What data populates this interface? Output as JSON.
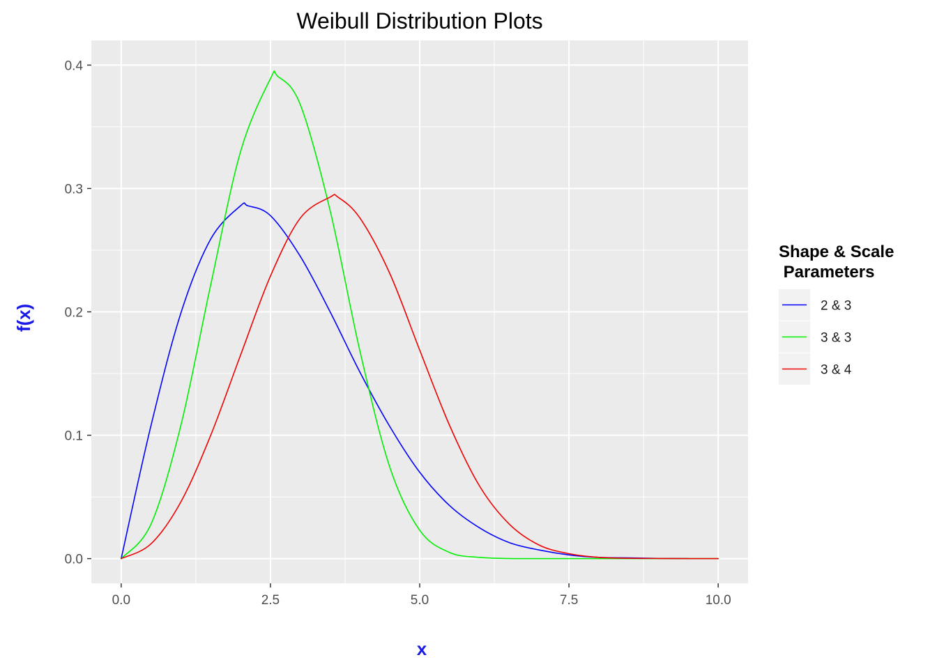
{
  "chart_data": {
    "type": "line",
    "title": "Weibull Distribution Plots",
    "xlabel": "x",
    "ylabel": "f(x)",
    "xlim": [
      -0.5,
      10.5
    ],
    "ylim": [
      -0.02,
      0.42
    ],
    "x_ticks": [
      0.0,
      2.5,
      5.0,
      7.5,
      10.0
    ],
    "x_tick_labels": [
      "0.0",
      "2.5",
      "5.0",
      "7.5",
      "10.0"
    ],
    "y_ticks": [
      0.0,
      0.1,
      0.2,
      0.3,
      0.4
    ],
    "y_tick_labels": [
      "0.0",
      "0.1",
      "0.2",
      "0.3",
      "0.4"
    ],
    "grid": true,
    "legend": {
      "title_lines": [
        "Shape & Scale",
        " Parameters"
      ],
      "placement": "right"
    },
    "colors": {
      "panel": "#ebebeb",
      "grid": "#ffffff",
      "axis_label": "#1a1ae6",
      "title": "#000000"
    },
    "series": [
      {
        "name": "2 & 3",
        "color": "#0000ff",
        "x": [
          0.0,
          0.5,
          1.0,
          1.5,
          2.0,
          2.12,
          2.5,
          3.0,
          3.5,
          4.0,
          4.5,
          5.0,
          5.5,
          6.0,
          6.5,
          7.0,
          7.5,
          8.0,
          8.5,
          9.0,
          9.5
        ],
        "y": [
          0.0,
          0.108,
          0.199,
          0.259,
          0.286,
          0.286,
          0.278,
          0.245,
          0.2,
          0.151,
          0.107,
          0.07,
          0.043,
          0.025,
          0.013,
          0.007,
          0.003,
          0.001,
          0.0006,
          0.0002,
          0.0001
        ]
      },
      {
        "name": "3 & 3",
        "color": "#00ee00",
        "x": [
          0.0,
          0.5,
          1.0,
          1.5,
          2.0,
          2.5,
          2.62,
          3.0,
          3.5,
          4.0,
          4.5,
          5.0,
          5.5,
          6.0,
          6.5,
          7.0,
          8.0,
          9.0,
          10.0
        ],
        "y": [
          0.0,
          0.028,
          0.108,
          0.222,
          0.33,
          0.389,
          0.391,
          0.368,
          0.282,
          0.168,
          0.074,
          0.023,
          0.005,
          0.001,
          0.0001,
          0.0,
          0.0,
          0.0,
          0.0
        ]
      },
      {
        "name": "3 & 4",
        "color": "#ee0000",
        "x": [
          0.0,
          0.5,
          1.0,
          1.5,
          2.0,
          2.5,
          3.0,
          3.5,
          3.63,
          4.0,
          4.5,
          5.0,
          5.5,
          6.0,
          6.5,
          7.0,
          7.5,
          8.0,
          8.5,
          9.0,
          9.5,
          10.0
        ],
        "y": [
          0.0,
          0.012,
          0.046,
          0.1,
          0.165,
          0.229,
          0.276,
          0.293,
          0.293,
          0.276,
          0.231,
          0.169,
          0.108,
          0.059,
          0.028,
          0.011,
          0.004,
          0.001,
          0.0003,
          0.0001,
          0.0,
          0.0
        ]
      }
    ]
  }
}
